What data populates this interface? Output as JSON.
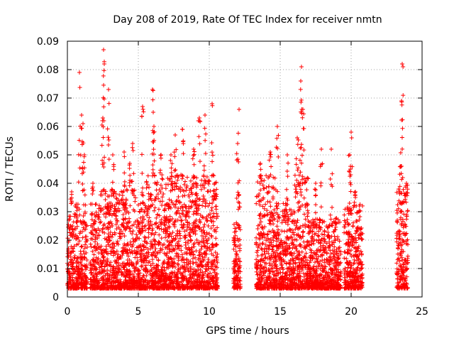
{
  "chart_data": {
    "type": "scatter",
    "title": "Day 208 of 2019, Rate Of TEC Index for receiver nmtn",
    "xlabel": "GPS time / hours",
    "ylabel": "ROTI / TECUs",
    "xlim": [
      0,
      25
    ],
    "ylim": [
      0,
      0.09
    ],
    "x_ticks": [
      "0",
      "5",
      "10",
      "15",
      "20",
      "25"
    ],
    "y_ticks": [
      "0",
      "0.01",
      "0.02",
      "0.03",
      "0.04",
      "0.05",
      "0.06",
      "0.07",
      "0.08",
      "0.09"
    ],
    "grid": true,
    "marker": "+",
    "series": [
      {
        "color": "#ff0000",
        "clusters": [
          {
            "x": [
              0.0,
              0.5
            ],
            "base_max": 0.027,
            "peaks": [
              [
                0.3,
                0.037
              ]
            ]
          },
          {
            "x": [
              0.5,
              1.4
            ],
            "base_max": 0.03,
            "peaks": [
              [
                0.85,
                0.079
              ],
              [
                1.0,
                0.064
              ],
              [
                1.1,
                0.061
              ],
              [
                1.2,
                0.05
              ]
            ]
          },
          {
            "x": [
              1.6,
              2.2
            ],
            "base_max": 0.03,
            "peaks": [
              [
                1.8,
                0.04
              ]
            ]
          },
          {
            "x": [
              2.2,
              3.5
            ],
            "base_max": 0.035,
            "peaks": [
              [
                2.55,
                0.087
              ],
              [
                2.6,
                0.082
              ],
              [
                2.9,
                0.073
              ],
              [
                2.5,
                0.063
              ],
              [
                3.2,
                0.05
              ]
            ]
          },
          {
            "x": [
              3.5,
              4.8
            ],
            "base_max": 0.035,
            "peaks": [
              [
                4.0,
                0.051
              ],
              [
                4.4,
                0.047
              ],
              [
                4.6,
                0.054
              ]
            ]
          },
          {
            "x": [
              4.8,
              5.2
            ],
            "base_max": 0.03,
            "peaks": []
          },
          {
            "x": [
              5.2,
              7.0
            ],
            "base_max": 0.04,
            "peaks": [
              [
                5.3,
                0.067
              ],
              [
                6.0,
                0.073
              ],
              [
                6.05,
                0.065
              ],
              [
                6.1,
                0.06
              ],
              [
                6.6,
                0.05
              ]
            ]
          },
          {
            "x": [
              7.0,
              8.5
            ],
            "base_max": 0.04,
            "peaks": [
              [
                7.6,
                0.057
              ],
              [
                8.1,
                0.059
              ],
              [
                7.3,
                0.05
              ]
            ]
          },
          {
            "x": [
              8.5,
              10.6
            ],
            "base_max": 0.04,
            "peaks": [
              [
                9.3,
                0.063
              ],
              [
                9.7,
                0.064
              ],
              [
                10.2,
                0.068
              ],
              [
                8.9,
                0.052
              ]
            ]
          },
          {
            "x": [
              11.7,
              12.2
            ],
            "base_max": 0.024,
            "peaks": [
              [
                12.1,
                0.066
              ],
              [
                12.0,
                0.054
              ],
              [
                12.1,
                0.036
              ]
            ]
          },
          {
            "x": [
              13.3,
              14.7
            ],
            "base_max": 0.04,
            "peaks": [
              [
                13.6,
                0.047
              ],
              [
                14.3,
                0.051
              ]
            ]
          },
          {
            "x": [
              14.7,
              16.0
            ],
            "base_max": 0.03,
            "peaks": [
              [
                14.8,
                0.06
              ],
              [
                15.5,
                0.05
              ]
            ]
          },
          {
            "x": [
              16.0,
              17.0
            ],
            "base_max": 0.04,
            "peaks": [
              [
                16.5,
                0.081
              ],
              [
                16.45,
                0.076
              ],
              [
                16.6,
                0.066
              ],
              [
                16.2,
                0.056
              ]
            ]
          },
          {
            "x": [
              17.0,
              19.3
            ],
            "base_max": 0.025,
            "peaks": [
              [
                17.9,
                0.052
              ],
              [
                18.6,
                0.052
              ],
              [
                17.5,
                0.04
              ]
            ]
          },
          {
            "x": [
              19.5,
              20.8
            ],
            "base_max": 0.03,
            "peaks": [
              [
                20.0,
                0.058
              ],
              [
                19.9,
                0.05
              ],
              [
                20.3,
                0.037
              ]
            ]
          },
          {
            "x": [
              23.2,
              24.0
            ],
            "base_max": 0.035,
            "peaks": [
              [
                23.6,
                0.082
              ],
              [
                23.55,
                0.069
              ],
              [
                23.5,
                0.046
              ],
              [
                23.9,
                0.04
              ]
            ]
          }
        ]
      }
    ]
  }
}
